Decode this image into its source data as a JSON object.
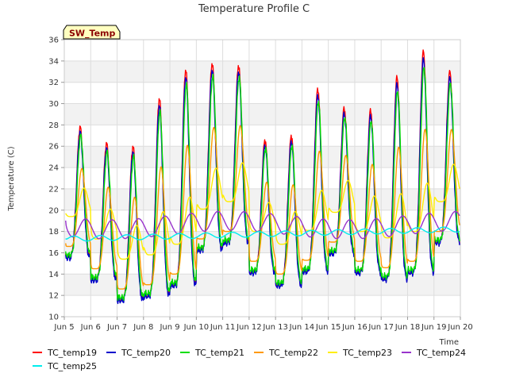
{
  "chart_data": {
    "type": "line",
    "title": "Temperature Profile C",
    "xlabel": "Time",
    "ylabel": "Temperature (C)",
    "badge": "SW_Temp",
    "xlim": [
      5,
      20
    ],
    "ylim": [
      10,
      36
    ],
    "x_ticks": [
      5,
      6,
      7,
      8,
      9,
      10,
      11,
      12,
      13,
      14,
      15,
      16,
      17,
      18,
      19,
      20
    ],
    "x_tick_labels": [
      "Jun 5",
      "Jun 6",
      "Jun 7",
      "Jun 8",
      "Jun 9",
      "Jun 10",
      "Jun 11",
      "Jun 12",
      "Jun 13",
      "Jun 14",
      "Jun 15",
      "Jun 16",
      "Jun 17",
      "Jun 18",
      "Jun 19",
      "Jun 20"
    ],
    "y_ticks": [
      10,
      12,
      14,
      16,
      18,
      20,
      22,
      24,
      26,
      28,
      30,
      32,
      34,
      36
    ],
    "y_tick_labels": [
      "10",
      "12",
      "14",
      "16",
      "18",
      "20",
      "22",
      "24",
      "26",
      "28",
      "30",
      "32",
      "34",
      "36"
    ],
    "grid": true,
    "legend_position": "bottom",
    "days": [
      5,
      6,
      7,
      8,
      9,
      10,
      11,
      12,
      13,
      14,
      15,
      16,
      17,
      18,
      19
    ],
    "day_min": [
      15.6,
      13.5,
      11.6,
      12.0,
      13.0,
      16.3,
      17.0,
      14.2,
      13.0,
      14.3,
      16.0,
      14.2,
      13.6,
      14.2,
      17.0
    ],
    "day_max": [
      27.8,
      26.3,
      26.0,
      30.5,
      33.2,
      33.8,
      33.6,
      26.6,
      27.0,
      31.4,
      29.6,
      29.4,
      32.5,
      34.9,
      33.0
    ],
    "series": [
      {
        "name": "TC_temp19",
        "color": "#ff0000",
        "amp": 1.0,
        "min_offset": 0.0,
        "phase": 0.58,
        "smooth": 1.0,
        "start": 17.2
      },
      {
        "name": "TC_temp20",
        "color": "#0000cc",
        "amp": 0.97,
        "min_offset": -0.1,
        "phase": 0.58,
        "smooth": 1.0,
        "start": 17.0
      },
      {
        "name": "TC_temp21",
        "color": "#00dd00",
        "amp": 0.92,
        "min_offset": 0.2,
        "phase": 0.6,
        "smooth": 1.0,
        "start": 17.0
      },
      {
        "name": "TC_temp22",
        "color": "#ff9900",
        "amp": 0.6,
        "min_offset": 1.0,
        "phase": 0.64,
        "smooth": 0.75,
        "start": 18.7
      },
      {
        "name": "TC_temp23",
        "color": "#ffee00",
        "amp": 0.22,
        "min_offset": 3.8,
        "phase": 0.72,
        "smooth": 0.5,
        "start": 19.8
      },
      {
        "name": "TC_temp24",
        "color": "#9933cc",
        "amp": 0.06,
        "min_offset": 6.5,
        "phase": 0.85,
        "smooth": 0.3,
        "start": 20.1
      },
      {
        "name": "TC_temp25",
        "color": "#00eeee",
        "amp": 0.02,
        "min_offset": 4.6,
        "phase": 0.8,
        "smooth": 0.2,
        "start": 17.5
      }
    ]
  }
}
